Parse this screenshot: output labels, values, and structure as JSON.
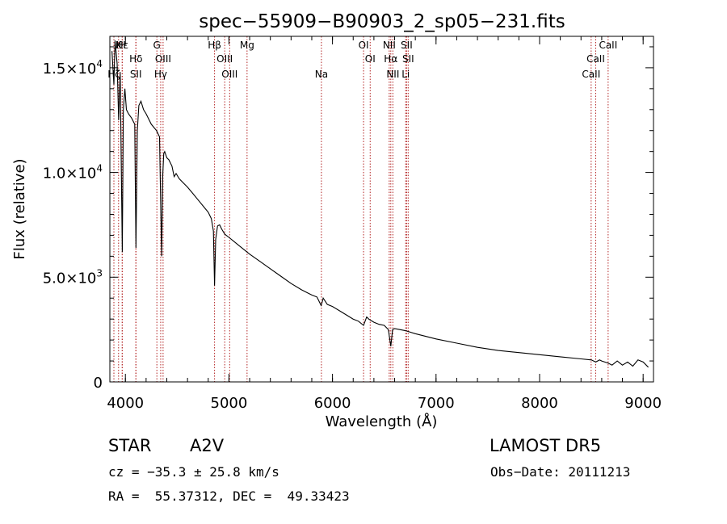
{
  "chart_data": {
    "type": "line",
    "title": "spec−55909−B90903_2_sp05−231.fits",
    "xlabel": "Wavelength (Å)",
    "ylabel": "Flux (relative)",
    "xlim": [
      3850,
      9100
    ],
    "ylim": [
      0,
      16500
    ],
    "x_ticks": [
      4000,
      5000,
      6000,
      7000,
      8000,
      9000
    ],
    "x_tick_labels": [
      "4000",
      "5000",
      "6000",
      "7000",
      "8000",
      "9000"
    ],
    "y_ticks": [
      0,
      5000,
      10000,
      15000
    ],
    "y_tick_labels": [
      {
        "mantissa": "0",
        "exp": ""
      },
      {
        "mantissa": "5.0×10",
        "exp": "3"
      },
      {
        "mantissa": "1.0×10",
        "exp": "4"
      },
      {
        "mantissa": "1.5×10",
        "exp": "4"
      }
    ],
    "series": [
      {
        "x": [
          3870,
          3889,
          3900,
          3920,
          3935,
          3950,
          3970,
          3980,
          3995,
          4010,
          4030,
          4060,
          4090,
          4102,
          4115,
          4130,
          4150,
          4175,
          4200,
          4250,
          4300,
          4330,
          4340,
          4350,
          4360,
          4370,
          4380,
          4400,
          4420,
          4450,
          4471,
          4490,
          4520,
          4560,
          4600,
          4650,
          4700,
          4750,
          4800,
          4830,
          4850,
          4861,
          4872,
          4890,
          4910,
          4930,
          4960,
          5000,
          5050,
          5100,
          5150,
          5200,
          5300,
          5400,
          5500,
          5600,
          5700,
          5800,
          5850,
          5890,
          5900,
          5910,
          5950,
          6000,
          6100,
          6200,
          6250,
          6300,
          6330,
          6350,
          6400,
          6450,
          6500,
          6540,
          6563,
          6580,
          6600,
          6700,
          6800,
          7000,
          7200,
          7400,
          7600,
          7800,
          8000,
          8200,
          8400,
          8500,
          8542,
          8580,
          8600,
          8662,
          8700,
          8750,
          8800,
          8850,
          8900,
          8950,
          9000,
          9050
        ],
        "y": [
          15800,
          14200,
          16300,
          15200,
          12500,
          14800,
          6200,
          13000,
          14000,
          13000,
          12800,
          12600,
          12300,
          6400,
          12000,
          13200,
          13400,
          13000,
          12800,
          12300,
          12000,
          11700,
          8800,
          6000,
          9800,
          10900,
          11000,
          10700,
          10600,
          10300,
          9800,
          9950,
          9700,
          9500,
          9300,
          9000,
          8700,
          8400,
          8100,
          7800,
          7200,
          4600,
          6800,
          7450,
          7500,
          7300,
          7050,
          6900,
          6700,
          6500,
          6300,
          6100,
          5750,
          5400,
          5050,
          4700,
          4400,
          4150,
          4050,
          3650,
          3800,
          4000,
          3700,
          3600,
          3300,
          3000,
          2900,
          2700,
          3100,
          3000,
          2850,
          2750,
          2700,
          2500,
          1700,
          2500,
          2550,
          2450,
          2300,
          2050,
          1850,
          1650,
          1500,
          1400,
          1300,
          1200,
          1100,
          1050,
          950,
          1050,
          1000,
          900,
          800,
          1000,
          800,
          950,
          750,
          1050,
          950,
          700
        ]
      }
    ],
    "lines": [
      {
        "x": 3889,
        "labels": [
          "Hζ"
        ]
      },
      {
        "x": 3934,
        "labels": [
          "K"
        ]
      },
      {
        "x": 3969,
        "labels": [
          "H"
        ]
      },
      {
        "x": 3970,
        "labels": [
          "Hε"
        ]
      },
      {
        "x": 4102,
        "labels": [
          "Hδ"
        ]
      },
      {
        "x": 4101,
        "labels": [
          "SII"
        ]
      },
      {
        "x": 4304,
        "labels": [
          "G"
        ]
      },
      {
        "x": 4341,
        "labels": [
          "Hγ"
        ]
      },
      {
        "x": 4364,
        "labels": [
          "OIII"
        ]
      },
      {
        "x": 4861,
        "labels": [
          "Hβ"
        ]
      },
      {
        "x": 4959,
        "labels": [
          "OIII"
        ]
      },
      {
        "x": 5007,
        "labels": [
          "OIII"
        ]
      },
      {
        "x": 5175,
        "labels": [
          "Mg"
        ]
      },
      {
        "x": 5893,
        "labels": [
          "Na"
        ]
      },
      {
        "x": 6300,
        "labels": [
          "OI"
        ]
      },
      {
        "x": 6364,
        "labels": [
          "OI"
        ]
      },
      {
        "x": 6548,
        "labels": [
          "NII"
        ]
      },
      {
        "x": 6563,
        "labels": [
          "Hα"
        ]
      },
      {
        "x": 6583,
        "labels": [
          "NII"
        ]
      },
      {
        "x": 6707,
        "labels": [
          "Li"
        ]
      },
      {
        "x": 6716,
        "labels": [
          "SII"
        ]
      },
      {
        "x": 6731,
        "labels": [
          "SII"
        ]
      },
      {
        "x": 8498,
        "labels": [
          "CaII"
        ]
      },
      {
        "x": 8542,
        "labels": [
          "CaII"
        ]
      },
      {
        "x": 8662,
        "labels": [
          "CaII"
        ]
      }
    ]
  },
  "info": {
    "class": "STAR",
    "subclass": "A2V",
    "survey": "LAMOST DR5",
    "cz": "cz = −35.3 ± 25.8 km/s",
    "obs_date": "Obs−Date: 20111213",
    "coords": "RA =  55.37312, DEC =  49.33423"
  },
  "colors": {
    "spectrum": "#000000",
    "line_markers": "#b22222"
  }
}
